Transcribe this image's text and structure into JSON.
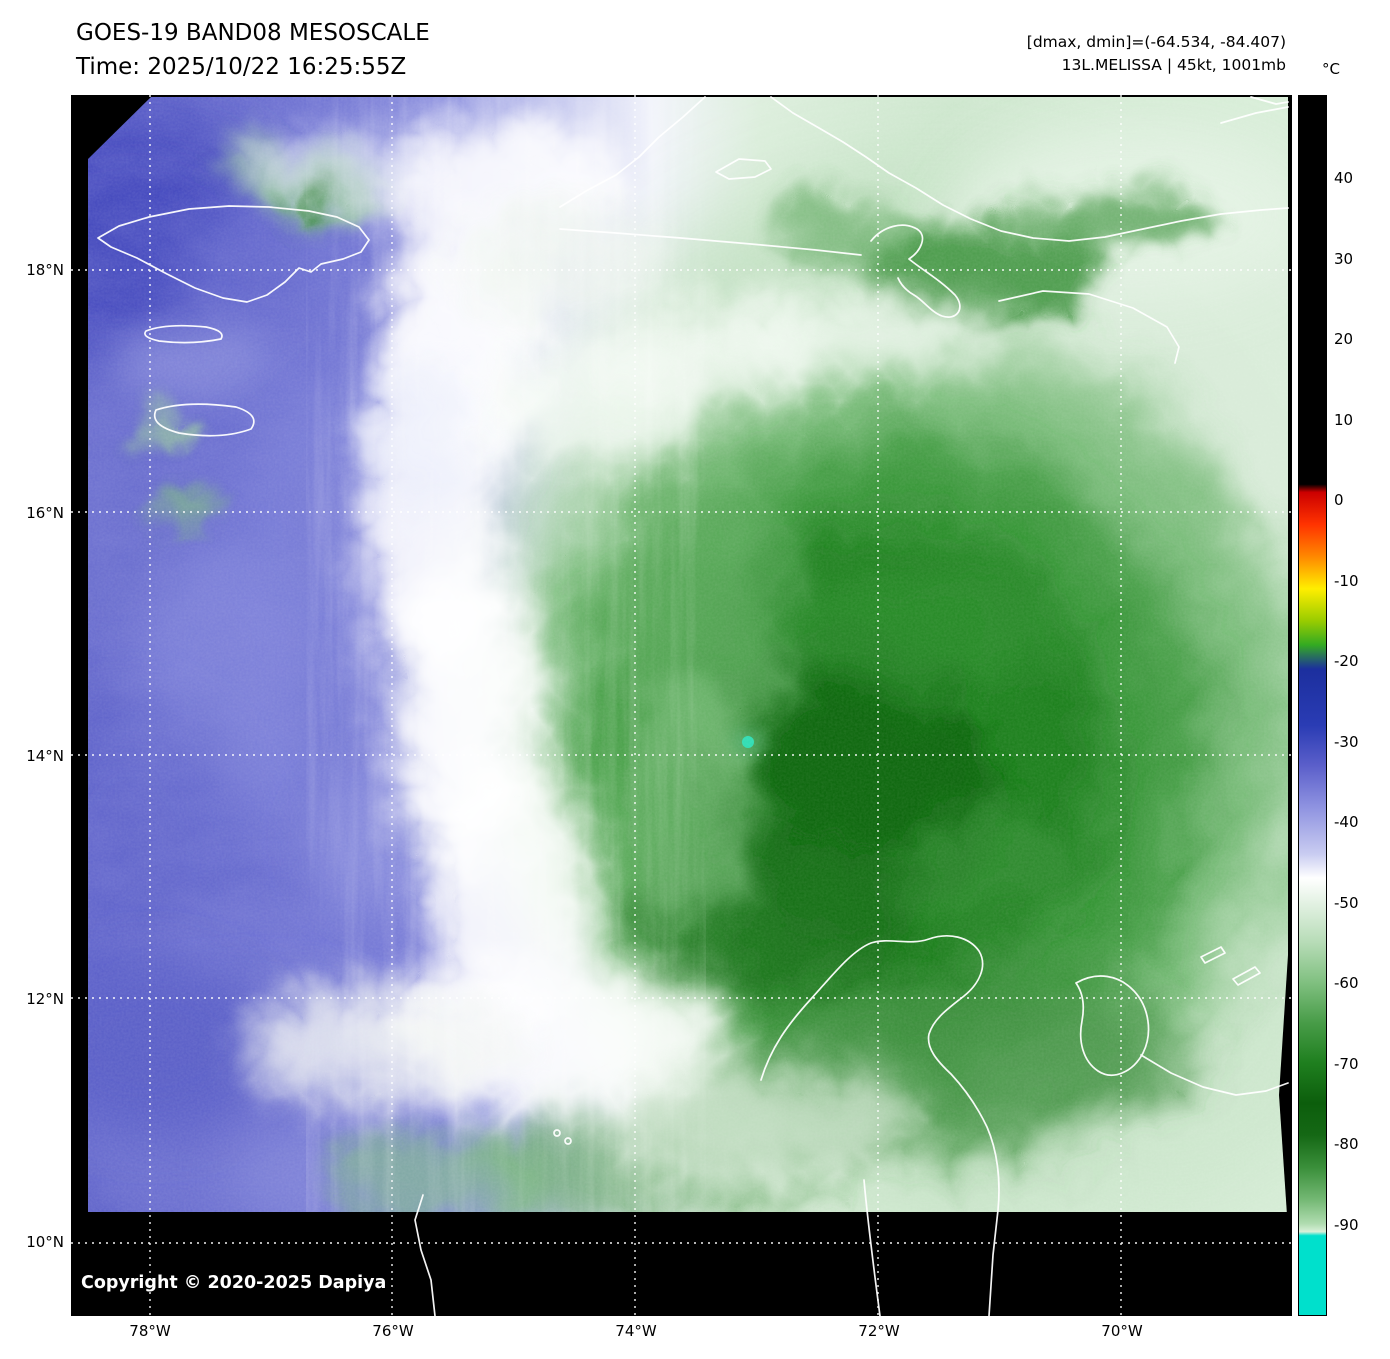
{
  "header": {
    "title": "GOES-19 BAND08 MESOSCALE",
    "time": "Time: 2025/10/22 16:25:55Z",
    "range_info": "[dmax, dmin]=(-64.534, -84.407)",
    "storm_info": "13L.MELISSA | 45kt, 1001mb"
  },
  "colorbar": {
    "unit": "°C",
    "ticks": [
      40,
      30,
      20,
      10,
      0,
      -10,
      -20,
      -30,
      -40,
      -50,
      -60,
      -70,
      -80,
      -90
    ],
    "gradient_stops": [
      {
        "v": 50,
        "c": "#000000"
      },
      {
        "v": 2,
        "c": "#000000"
      },
      {
        "v": 1,
        "c": "#cc0000"
      },
      {
        "v": -3,
        "c": "#ff3300"
      },
      {
        "v": -7,
        "c": "#ff8800"
      },
      {
        "v": -11,
        "c": "#ffee00"
      },
      {
        "v": -15,
        "c": "#99cc00"
      },
      {
        "v": -18,
        "c": "#33aa22"
      },
      {
        "v": -21,
        "c": "#1c2f9e"
      },
      {
        "v": -28,
        "c": "#2a3cb4"
      },
      {
        "v": -33,
        "c": "#5b5fca"
      },
      {
        "v": -38,
        "c": "#8d91e0"
      },
      {
        "v": -44,
        "c": "#c9ccf1"
      },
      {
        "v": -47,
        "c": "#ffffff"
      },
      {
        "v": -50,
        "c": "#e4f2e4"
      },
      {
        "v": -55,
        "c": "#b7dcb7"
      },
      {
        "v": -60,
        "c": "#80c080"
      },
      {
        "v": -65,
        "c": "#489c48"
      },
      {
        "v": -70,
        "c": "#1f7f1f"
      },
      {
        "v": -75,
        "c": "#0c5e0c"
      },
      {
        "v": -79,
        "c": "#156815"
      },
      {
        "v": -83,
        "c": "#3a8f3a"
      },
      {
        "v": -87,
        "c": "#74b874"
      },
      {
        "v": -90,
        "c": "#b0dcb0"
      },
      {
        "v": -91,
        "c": "#d8f0d8"
      },
      {
        "v": -91.5,
        "c": "#00e0cc"
      },
      {
        "v": -101,
        "c": "#00e0cc"
      }
    ]
  },
  "axes": {
    "lat_labels": [
      "18°N",
      "16°N",
      "14°N",
      "12°N",
      "10°N"
    ],
    "lon_labels": [
      "78°W",
      "76°W",
      "74°W",
      "72°W",
      "70°W"
    ]
  },
  "map": {
    "colors": {
      "coastline": "#ffffff",
      "gridline": "#ffffff",
      "background": "#000000"
    }
  },
  "footer": {
    "copyright": "Copyright © 2020-2025 Dapiya"
  }
}
